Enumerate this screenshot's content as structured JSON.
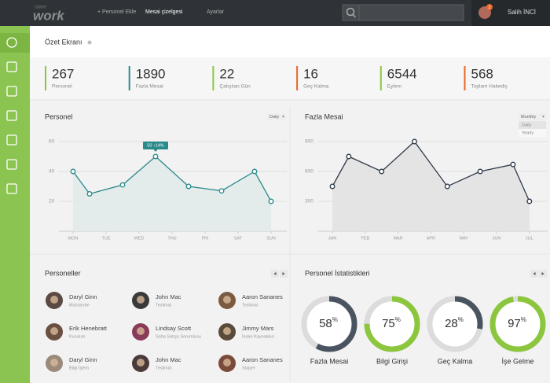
{
  "topbar": {
    "logo": {
      "small": "came",
      "main": "work"
    },
    "nav": [
      "+ Personel Ekle",
      "Mesai çizelgesi",
      "Ayarlar"
    ],
    "active_nav": 1,
    "badge": "2",
    "user": "Salih İNCİ"
  },
  "header": {
    "title": "Özet Ekranı"
  },
  "stats": [
    {
      "value": 267,
      "label": "Personel",
      "color": "#8cc63f"
    },
    {
      "value": 1890,
      "label": "Fazla Mesai",
      "color": "#2a8a8a"
    },
    {
      "value": 22,
      "label": "Çalışılan Gün",
      "color": "#8cc63f"
    },
    {
      "value": 16,
      "label": "Geç Kalma",
      "color": "#e8672a"
    },
    {
      "value": 6544,
      "label": "Eylem",
      "color": "#8cc63f"
    },
    {
      "value": 568,
      "label": "Toplam Hakediş",
      "color": "#e8672a"
    }
  ],
  "charts": [
    {
      "type": "line",
      "title": "Personel",
      "dropdown": "Daily",
      "x": [
        0,
        0.5,
        1.5,
        2.5,
        3.5,
        4.5,
        5.5,
        6
      ],
      "values": [
        40,
        25,
        31,
        50,
        30,
        27,
        40,
        20
      ],
      "color": "#2a8a8a",
      "xlim": [
        -0.4,
        6.5
      ],
      "xticks": [
        {
          "value": 0,
          "label": "MON"
        },
        {
          "value": 1,
          "label": "TUE"
        },
        {
          "value": 2,
          "label": "WED"
        },
        {
          "value": 3,
          "label": "THU"
        },
        {
          "value": 4,
          "label": "FRI"
        },
        {
          "value": 5,
          "label": "SAT"
        },
        {
          "value": 6,
          "label": "SUN"
        }
      ],
      "ylim": [
        0,
        70
      ],
      "yticks": [
        20,
        40,
        60
      ],
      "grid": true,
      "tooltip": {
        "point": 3,
        "text": "50 ↑14%"
      }
    },
    {
      "type": "line",
      "title": "Fazla Mesai",
      "dropdown": "Monthly",
      "dropdown_options": [
        "Daily",
        "Yearly"
      ],
      "x": [
        0,
        0.5,
        1.5,
        2.5,
        3.5,
        4.5,
        5.5,
        6
      ],
      "values": [
        450,
        750,
        600,
        900,
        450,
        600,
        670,
        300
      ],
      "color": "#2e3a4a",
      "xlim": [
        -0.4,
        6.5
      ],
      "xticks": [
        {
          "value": 0,
          "label": "JAN"
        },
        {
          "value": 1,
          "label": "FEB"
        },
        {
          "value": 2,
          "label": "MAR"
        },
        {
          "value": 3,
          "label": "APR"
        },
        {
          "value": 4,
          "label": "MAY"
        },
        {
          "value": 5,
          "label": "JUN"
        },
        {
          "value": 6,
          "label": "JUL"
        }
      ],
      "ylim": [
        0,
        1050
      ],
      "yticks": [
        300,
        600,
        900
      ],
      "grid": true
    }
  ],
  "people": {
    "title": "Personeller",
    "items": [
      {
        "name": "Daryl Ginn",
        "role": "Muhasebe"
      },
      {
        "name": "John Mac",
        "role": "Teslimat"
      },
      {
        "name": "Aaron Sananes",
        "role": "Teslimat"
      },
      {
        "name": "Erik Henebratt",
        "role": "Kurulum"
      },
      {
        "name": "Lindsay Scott",
        "role": "Saha Satışa Sorumlusu"
      },
      {
        "name": "Jimmy Mars",
        "role": "İnsan Kaynakları"
      },
      {
        "name": "Daryl Ginn",
        "role": "Bilgi İşlem"
      },
      {
        "name": "John Mac",
        "role": "Teslimat"
      },
      {
        "name": "Aaron Sananes",
        "role": "Stajyer"
      }
    ]
  },
  "person_stats": {
    "title": "Personel İstatistikleri",
    "items": [
      {
        "name": "Fazla Mesai",
        "value": 58,
        "unit": "%",
        "color": "#4a5460"
      },
      {
        "name": "Bilgi Girişi",
        "value": 75,
        "unit": "%",
        "color": "#8cc63f"
      },
      {
        "name": "Geç Kalma",
        "value": 28,
        "unit": "%",
        "color": "#4a5460"
      },
      {
        "name": "İşe Gelme",
        "value": 97,
        "unit": "%",
        "color": "#8cc63f"
      }
    ]
  }
}
